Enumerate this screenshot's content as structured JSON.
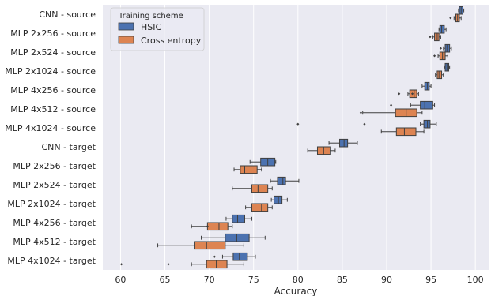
{
  "chart_data": {
    "type": "box",
    "orientation": "horizontal",
    "title": "",
    "xlabel": "Accuracy",
    "ylabel": "",
    "xlim": [
      58,
      101.5
    ],
    "xticks": [
      60,
      65,
      70,
      75,
      80,
      85,
      90,
      95,
      100
    ],
    "grid": true,
    "legend": {
      "title": "Training scheme",
      "placement": "top-left"
    },
    "categories": [
      "CNN - source",
      "MLP 2x256 - source",
      "MLP 2x524 - source",
      "MLP 2x1024 - source",
      "MLP 4x256 - source",
      "MLP 4x512 - source",
      "MLP 4x1024 - source",
      "CNN - target",
      "MLP 2x256 - target",
      "MLP 2x524 - target",
      "MLP 2x1024 - target",
      "MLP 4x256 - target",
      "MLP 4x512 - target",
      "MLP 4x1024 - target"
    ],
    "series": [
      {
        "name": "HSIC",
        "color": "#4c72b0",
        "boxes": [
          {
            "whislo": 98.1,
            "q1": 98.2,
            "med": 98.4,
            "q3": 98.6,
            "whishi": 98.7,
            "fliers": []
          },
          {
            "whislo": 95.9,
            "q1": 96.0,
            "med": 96.2,
            "q3": 96.5,
            "whishi": 96.7,
            "fliers": []
          },
          {
            "whislo": 96.4,
            "q1": 96.6,
            "med": 96.8,
            "q3": 97.1,
            "whishi": 97.3,
            "fliers": [
              96.1
            ]
          },
          {
            "whislo": 96.5,
            "q1": 96.6,
            "med": 96.8,
            "q3": 97.0,
            "whishi": 97.1,
            "fliers": []
          },
          {
            "whislo": 94.0,
            "q1": 94.3,
            "med": 94.6,
            "q3": 94.8,
            "whishi": 95.0,
            "fliers": []
          },
          {
            "whislo": 92.7,
            "q1": 93.8,
            "med": 94.3,
            "q3": 95.2,
            "whishi": 95.4,
            "fliers": [
              90.5
            ]
          },
          {
            "whislo": 93.8,
            "q1": 94.2,
            "med": 94.6,
            "q3": 94.9,
            "whishi": 95.6,
            "fliers": [
              80.0,
              87.5
            ]
          },
          {
            "whislo": 83.5,
            "q1": 84.7,
            "med": 85.2,
            "q3": 85.6,
            "whishi": 86.7,
            "fliers": []
          },
          {
            "whislo": 74.6,
            "q1": 75.8,
            "med": 76.6,
            "q3": 77.4,
            "whishi": 77.5,
            "fliers": []
          },
          {
            "whislo": 76.9,
            "q1": 77.7,
            "med": 78.3,
            "q3": 78.6,
            "whishi": 80.1,
            "fliers": []
          },
          {
            "whislo": 77.0,
            "q1": 77.3,
            "med": 77.8,
            "q3": 78.2,
            "whishi": 78.8,
            "fliers": []
          },
          {
            "whislo": 71.9,
            "q1": 72.6,
            "med": 73.2,
            "q3": 74.0,
            "whishi": 74.8,
            "fliers": []
          },
          {
            "whislo": 69.1,
            "q1": 71.8,
            "med": 73.1,
            "q3": 74.5,
            "whishi": 76.3,
            "fliers": []
          },
          {
            "whislo": 71.5,
            "q1": 72.7,
            "med": 73.4,
            "q3": 74.3,
            "whishi": 75.2,
            "fliers": [
              70.6
            ]
          }
        ]
      },
      {
        "name": "Cross entropy",
        "color": "#dd8452",
        "boxes": [
          {
            "whislo": 97.6,
            "q1": 97.8,
            "med": 98.0,
            "q3": 98.2,
            "whishi": 98.4,
            "fliers": [
              97.2
            ]
          },
          {
            "whislo": 95.2,
            "q1": 95.4,
            "med": 95.7,
            "q3": 95.9,
            "whishi": 96.1,
            "fliers": [
              94.9
            ]
          },
          {
            "whislo": 95.8,
            "q1": 96.0,
            "med": 96.3,
            "q3": 96.6,
            "whishi": 96.9,
            "fliers": [
              95.4
            ]
          },
          {
            "whislo": 95.5,
            "q1": 95.7,
            "med": 95.9,
            "q3": 96.2,
            "whishi": 96.4,
            "fliers": []
          },
          {
            "whislo": 92.4,
            "q1": 92.6,
            "med": 93.1,
            "q3": 93.4,
            "whishi": 93.6,
            "fliers": [
              91.4,
              92.9
            ]
          },
          {
            "whislo": 87.3,
            "q1": 91.0,
            "med": 92.2,
            "q3": 93.4,
            "whishi": 94.0,
            "fliers": [
              87.1
            ]
          },
          {
            "whislo": 89.4,
            "q1": 91.1,
            "med": 92.0,
            "q3": 93.3,
            "whishi": 94.2,
            "fliers": []
          },
          {
            "whislo": 81.1,
            "q1": 82.2,
            "med": 82.9,
            "q3": 83.7,
            "whishi": 84.2,
            "fliers": []
          },
          {
            "whislo": 72.8,
            "q1": 73.5,
            "med": 74.0,
            "q3": 75.4,
            "whishi": 75.9,
            "fliers": []
          },
          {
            "whislo": 72.6,
            "q1": 74.8,
            "med": 75.5,
            "q3": 76.6,
            "whishi": 77.1,
            "fliers": []
          },
          {
            "whislo": 74.1,
            "q1": 74.8,
            "med": 75.9,
            "q3": 76.6,
            "whishi": 77.1,
            "fliers": []
          },
          {
            "whislo": 68.0,
            "q1": 69.8,
            "med": 71.1,
            "q3": 72.1,
            "whishi": 72.6,
            "fliers": [
              69.8
            ]
          },
          {
            "whislo": 64.2,
            "q1": 68.3,
            "med": 69.7,
            "q3": 71.8,
            "whishi": 73.9,
            "fliers": []
          },
          {
            "whislo": 68.0,
            "q1": 69.7,
            "med": 70.8,
            "q3": 72.0,
            "whishi": 73.9,
            "fliers": [
              60.1,
              65.4
            ]
          }
        ]
      }
    ]
  }
}
